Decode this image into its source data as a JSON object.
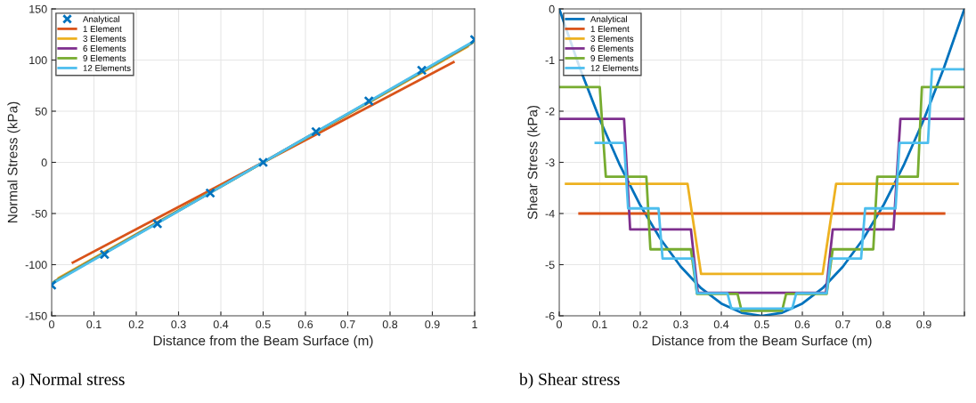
{
  "chart_data": [
    {
      "type": "line",
      "xlabel": "Distance from the Beam Surface (m)",
      "ylabel": "Normal Stress (kPa)",
      "xlim": [
        0,
        1
      ],
      "ylim": [
        -150,
        150
      ],
      "xticks": [
        0,
        0.1,
        0.2,
        0.3,
        0.4,
        0.5,
        0.6,
        0.7,
        0.8,
        0.9,
        1
      ],
      "yticks": [
        -150,
        -100,
        -50,
        0,
        50,
        100,
        150
      ],
      "grid": true,
      "legend": "top left",
      "annotations": [
        "a) Normal stress"
      ],
      "series": [
        {
          "name": "Analytical",
          "type": "scatter",
          "marker": "cross",
          "color": "#0072bd",
          "x": [
            0,
            0.125,
            0.25,
            0.375,
            0.5,
            0.625,
            0.75,
            0.875,
            1
          ],
          "values": [
            -120,
            -90,
            -60,
            -30,
            0,
            30,
            60,
            90,
            120
          ]
        },
        {
          "name": "1 Element",
          "color": "#d95319",
          "x": [
            0.05,
            0.95
          ],
          "values": [
            -98,
            98
          ]
        },
        {
          "name": "3 Elements",
          "color": "#edb120",
          "x": [
            0.0167,
            0.9833
          ],
          "values": [
            -113,
            113
          ]
        },
        {
          "name": "6 Elements",
          "color": "#7e2f8e",
          "x": [
            0.0083,
            0.9917
          ],
          "values": [
            -116,
            116
          ]
        },
        {
          "name": "9 Elements",
          "color": "#77ac30",
          "x": [
            0.0056,
            0.9944
          ],
          "values": [
            -117,
            117
          ]
        },
        {
          "name": "12 Elements",
          "color": "#4dbeee",
          "x": [
            0.0042,
            0.9958
          ],
          "values": [
            -118,
            118
          ]
        }
      ]
    },
    {
      "type": "line",
      "xlabel": "Distance from the Beam Surface (m)",
      "ylabel": "Shear Stress (kPa)",
      "xlim": [
        0,
        1
      ],
      "ylim": [
        -6,
        0
      ],
      "xticks": [
        0,
        0.1,
        0.2,
        0.3,
        0.4,
        0.5,
        0.6,
        0.7,
        0.8,
        0.9,
        {
          "value": 1,
          "label": null
        }
      ],
      "yticks": [
        -6,
        -5,
        -4,
        -3,
        -2,
        -1,
        0
      ],
      "grid": true,
      "legend": "top left",
      "annotations": [
        "b) Shear stress"
      ],
      "series": [
        {
          "name": "Analytical",
          "color": "#0072bd",
          "x": [
            0,
            0.05,
            0.1,
            0.15,
            0.2,
            0.25,
            0.3,
            0.35,
            0.4,
            0.45,
            0.5,
            0.55,
            0.6,
            0.65,
            0.7,
            0.75,
            0.8,
            0.85,
            0.9,
            0.95,
            1
          ],
          "values": [
            0,
            -1.14,
            -2.16,
            -3.06,
            -3.84,
            -4.5,
            -5.04,
            -5.46,
            -5.76,
            -5.94,
            -6,
            -5.94,
            -5.76,
            -5.46,
            -5.04,
            -4.5,
            -3.84,
            -3.06,
            -2.16,
            -1.14,
            0
          ]
        },
        {
          "name": "1 Element",
          "color": "#d95319",
          "x": [
            0.05,
            0.95
          ],
          "values": [
            -4,
            -4
          ]
        },
        {
          "name": "3 Elements",
          "color": "#edb120",
          "x": [
            0.0167,
            0.3167,
            0.35,
            0.65,
            0.6833,
            0.9833
          ],
          "values": [
            -3.42,
            -3.42,
            -5.18,
            -5.18,
            -3.42,
            -3.42
          ]
        },
        {
          "name": "6 Elements",
          "color": "#7e2f8e",
          "x": [
            0,
            0.16,
            0.175,
            0.325,
            0.342,
            0.658,
            0.675,
            0.825,
            0.842,
            1
          ],
          "values": [
            -2.15,
            -2.15,
            -4.31,
            -4.31,
            -5.55,
            -5.55,
            -4.31,
            -4.31,
            -2.15,
            -2.15
          ]
        },
        {
          "name": "9 Elements",
          "color": "#77ac30",
          "x": [
            0,
            0.1,
            0.115,
            0.215,
            0.225,
            0.325,
            0.34,
            0.44,
            0.45,
            0.55,
            0.56,
            0.66,
            0.675,
            0.775,
            0.785,
            0.885,
            0.895,
            1
          ],
          "values": [
            -1.53,
            -1.53,
            -3.28,
            -3.28,
            -4.7,
            -4.7,
            -5.57,
            -5.57,
            -5.9,
            -5.9,
            -5.57,
            -5.57,
            -4.7,
            -4.7,
            -3.28,
            -3.28,
            -1.53,
            -1.53
          ]
        },
        {
          "name": "12 Elements",
          "color": "#4dbeee",
          "x": [
            0.09,
            0.16,
            0.17,
            0.245,
            0.255,
            0.33,
            0.34,
            0.415,
            0.425,
            0.575,
            0.585,
            0.66,
            0.67,
            0.745,
            0.755,
            0.83,
            0.84,
            0.91,
            0.92,
            1
          ],
          "values": [
            -2.62,
            -2.62,
            -3.9,
            -3.9,
            -4.88,
            -4.88,
            -5.56,
            -5.56,
            -5.86,
            -5.86,
            -5.56,
            -5.56,
            -4.88,
            -4.88,
            -3.9,
            -3.9,
            -2.62,
            -2.62,
            -1.18,
            -1.18
          ]
        }
      ]
    }
  ]
}
